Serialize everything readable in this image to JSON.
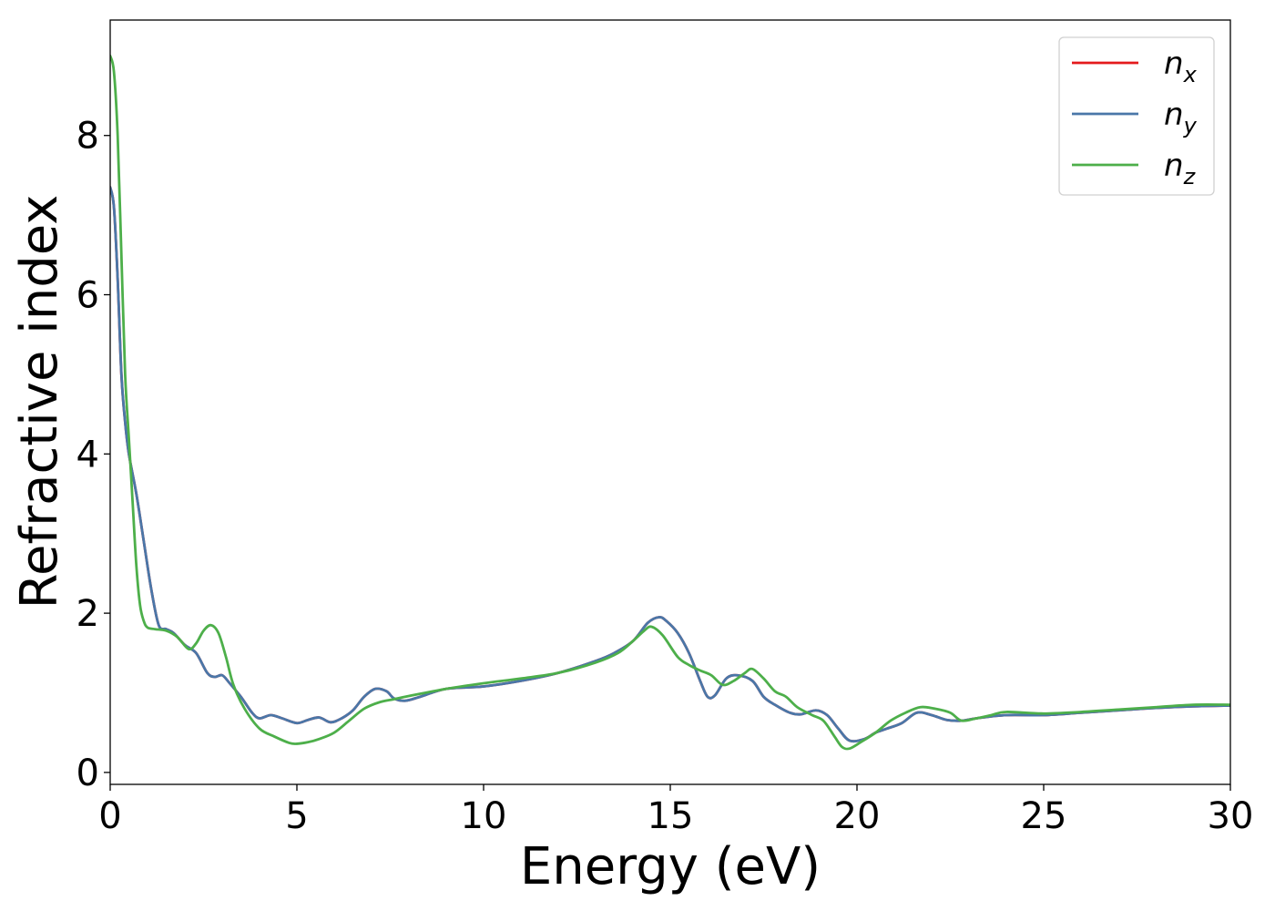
{
  "chart_data": {
    "type": "line",
    "title": "",
    "xlabel": "Energy (eV)",
    "ylabel": "Refractive index",
    "xlim": [
      0,
      30
    ],
    "ylim": [
      -0.15,
      9.45
    ],
    "xticks": [
      0,
      5,
      10,
      15,
      20,
      25,
      30
    ],
    "yticks": [
      0,
      2,
      4,
      6,
      8
    ],
    "grid": false,
    "legend_position": "top-right",
    "series": [
      {
        "name": "n_x",
        "label_base": "n",
        "label_sub": "x",
        "color": "#e41a1c",
        "x": [
          0,
          0.1,
          0.2,
          0.3,
          0.4,
          0.5,
          0.7,
          0.9,
          1.1,
          1.3,
          1.5,
          1.7,
          2.0,
          2.3,
          2.6,
          2.8,
          3.0,
          3.2,
          3.5,
          3.8,
          4.0,
          4.3,
          4.6,
          5.0,
          5.3,
          5.6,
          5.9,
          6.2,
          6.5,
          6.8,
          7.1,
          7.4,
          7.6,
          7.9,
          8.3,
          9.0,
          10.0,
          11.0,
          12.0,
          13.0,
          13.5,
          14.0,
          14.4,
          14.7,
          14.9,
          15.2,
          15.5,
          15.8,
          16.0,
          16.2,
          16.5,
          16.8,
          17.2,
          17.5,
          17.8,
          18.2,
          18.5,
          18.9,
          19.2,
          19.5,
          19.8,
          20.2,
          20.5,
          20.8,
          21.2,
          21.6,
          22.0,
          22.4,
          22.8,
          23.2,
          24.0,
          25.0,
          26.0,
          27.0,
          28.0,
          29.0,
          30.0
        ],
        "y": [
          7.35,
          7.1,
          6.2,
          5.0,
          4.4,
          4.0,
          3.5,
          2.9,
          2.3,
          1.85,
          1.8,
          1.75,
          1.6,
          1.5,
          1.25,
          1.2,
          1.22,
          1.12,
          0.95,
          0.75,
          0.68,
          0.72,
          0.68,
          0.62,
          0.66,
          0.69,
          0.63,
          0.68,
          0.78,
          0.95,
          1.05,
          1.02,
          0.93,
          0.9,
          0.95,
          1.05,
          1.08,
          1.15,
          1.25,
          1.4,
          1.5,
          1.65,
          1.88,
          1.95,
          1.9,
          1.75,
          1.5,
          1.15,
          0.95,
          0.97,
          1.18,
          1.22,
          1.15,
          0.95,
          0.85,
          0.75,
          0.73,
          0.78,
          0.72,
          0.55,
          0.4,
          0.42,
          0.5,
          0.55,
          0.62,
          0.75,
          0.72,
          0.66,
          0.65,
          0.68,
          0.72,
          0.72,
          0.75,
          0.78,
          0.81,
          0.83,
          0.84
        ]
      },
      {
        "name": "n_y",
        "label_base": "n",
        "label_sub": "y",
        "color": "#4a77a8",
        "x": [
          0,
          0.1,
          0.2,
          0.3,
          0.4,
          0.5,
          0.7,
          0.9,
          1.1,
          1.3,
          1.5,
          1.7,
          2.0,
          2.3,
          2.6,
          2.8,
          3.0,
          3.2,
          3.5,
          3.8,
          4.0,
          4.3,
          4.6,
          5.0,
          5.3,
          5.6,
          5.9,
          6.2,
          6.5,
          6.8,
          7.1,
          7.4,
          7.6,
          7.9,
          8.3,
          9.0,
          10.0,
          11.0,
          12.0,
          13.0,
          13.5,
          14.0,
          14.4,
          14.7,
          14.9,
          15.2,
          15.5,
          15.8,
          16.0,
          16.2,
          16.5,
          16.8,
          17.2,
          17.5,
          17.8,
          18.2,
          18.5,
          18.9,
          19.2,
          19.5,
          19.8,
          20.2,
          20.5,
          20.8,
          21.2,
          21.6,
          22.0,
          22.4,
          22.8,
          23.2,
          24.0,
          25.0,
          26.0,
          27.0,
          28.0,
          29.0,
          30.0
        ],
        "y": [
          7.35,
          7.1,
          6.2,
          5.0,
          4.4,
          4.0,
          3.5,
          2.9,
          2.3,
          1.85,
          1.8,
          1.75,
          1.6,
          1.5,
          1.25,
          1.2,
          1.22,
          1.12,
          0.95,
          0.75,
          0.68,
          0.72,
          0.68,
          0.62,
          0.66,
          0.69,
          0.63,
          0.68,
          0.78,
          0.95,
          1.05,
          1.02,
          0.93,
          0.9,
          0.95,
          1.05,
          1.08,
          1.15,
          1.25,
          1.4,
          1.5,
          1.65,
          1.88,
          1.95,
          1.9,
          1.75,
          1.5,
          1.15,
          0.95,
          0.97,
          1.18,
          1.22,
          1.15,
          0.95,
          0.85,
          0.75,
          0.73,
          0.78,
          0.72,
          0.55,
          0.4,
          0.42,
          0.5,
          0.55,
          0.62,
          0.75,
          0.72,
          0.66,
          0.65,
          0.68,
          0.72,
          0.72,
          0.75,
          0.78,
          0.81,
          0.83,
          0.84
        ]
      },
      {
        "name": "n_z",
        "label_base": "n",
        "label_sub": "z",
        "color": "#4daf4a",
        "x": [
          0,
          0.1,
          0.2,
          0.3,
          0.4,
          0.5,
          0.6,
          0.7,
          0.8,
          0.9,
          1.0,
          1.2,
          1.5,
          1.8,
          2.1,
          2.3,
          2.5,
          2.7,
          2.9,
          3.1,
          3.3,
          3.6,
          4.0,
          4.4,
          4.8,
          5.0,
          5.3,
          5.6,
          6.0,
          6.4,
          6.8,
          7.2,
          7.6,
          8.0,
          9.0,
          10.0,
          11.0,
          12.0,
          13.0,
          13.6,
          14.0,
          14.3,
          14.5,
          14.8,
          15.2,
          15.5,
          15.8,
          16.1,
          16.4,
          16.7,
          17.0,
          17.2,
          17.5,
          17.8,
          18.1,
          18.4,
          18.8,
          19.1,
          19.4,
          19.6,
          19.8,
          20.1,
          20.5,
          20.9,
          21.3,
          21.7,
          22.1,
          22.5,
          22.8,
          23.2,
          23.6,
          24.0,
          25.0,
          26.0,
          27.0,
          28.0,
          29.0,
          30.0
        ],
        "y": [
          9.0,
          8.8,
          8.0,
          6.5,
          5.0,
          4.2,
          3.4,
          2.6,
          2.1,
          1.9,
          1.82,
          1.8,
          1.78,
          1.7,
          1.55,
          1.62,
          1.78,
          1.85,
          1.75,
          1.45,
          1.1,
          0.8,
          0.55,
          0.45,
          0.37,
          0.36,
          0.38,
          0.42,
          0.5,
          0.65,
          0.8,
          0.88,
          0.92,
          0.96,
          1.05,
          1.12,
          1.18,
          1.25,
          1.38,
          1.5,
          1.65,
          1.78,
          1.83,
          1.72,
          1.45,
          1.35,
          1.28,
          1.22,
          1.1,
          1.15,
          1.25,
          1.3,
          1.18,
          1.02,
          0.95,
          0.82,
          0.72,
          0.65,
          0.45,
          0.32,
          0.3,
          0.38,
          0.5,
          0.65,
          0.75,
          0.82,
          0.8,
          0.75,
          0.65,
          0.68,
          0.72,
          0.76,
          0.74,
          0.76,
          0.79,
          0.82,
          0.85,
          0.85
        ]
      }
    ]
  }
}
